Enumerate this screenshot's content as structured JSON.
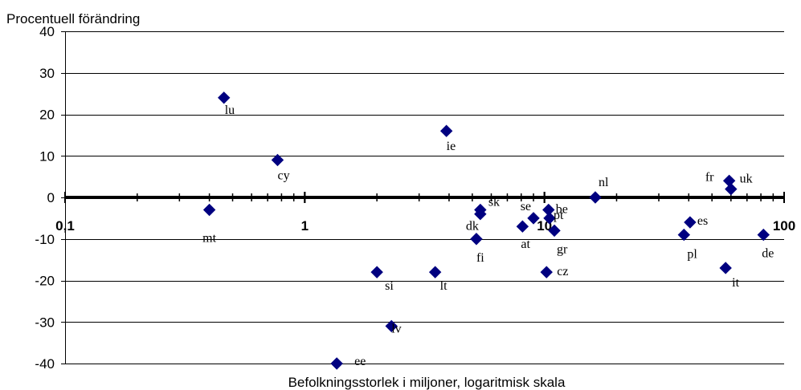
{
  "chart_data": {
    "type": "scatter",
    "title": "",
    "ylabel": "Procentuell förändring",
    "xlabel": "Befolkningsstorlek i miljoner, logaritmisk skala",
    "x_scale": "log",
    "xlim": [
      0.1,
      100
    ],
    "ylim": [
      -40,
      40
    ],
    "x_ticks": [
      0.1,
      1,
      10,
      100
    ],
    "x_tick_labels": [
      "0,1",
      "1",
      "10",
      "100"
    ],
    "y_ticks": [
      40,
      30,
      20,
      10,
      0,
      -10,
      -20,
      -30,
      -40
    ],
    "y_tick_labels": [
      "40",
      "30",
      "20",
      "10",
      "0",
      "-10",
      "-20",
      "-30",
      "-40"
    ],
    "grid": "horizontal",
    "marker_color": "#000080",
    "series": [
      {
        "points": [
          {
            "label": "mt",
            "x": 0.4,
            "y": -3
          },
          {
            "label": "lu",
            "x": 0.46,
            "y": 24
          },
          {
            "label": "cy",
            "x": 0.77,
            "y": 9
          },
          {
            "label": "ee",
            "x": 1.36,
            "y": -40
          },
          {
            "label": "lv",
            "x": 2.3,
            "y": -31
          },
          {
            "label": "si",
            "x": 2.0,
            "y": -18
          },
          {
            "label": "lt",
            "x": 3.5,
            "y": -18
          },
          {
            "label": "ie",
            "x": 3.9,
            "y": 16
          },
          {
            "label": "fi",
            "x": 5.2,
            "y": -10
          },
          {
            "label": "dk",
            "x": 5.4,
            "y": -4
          },
          {
            "label": "sk",
            "x": 5.4,
            "y": -3
          },
          {
            "label": "se",
            "x": 9.0,
            "y": -5
          },
          {
            "label": "at",
            "x": 8.1,
            "y": -7
          },
          {
            "label": "cz",
            "x": 10.2,
            "y": -18
          },
          {
            "label": "be",
            "x": 10.4,
            "y": -3
          },
          {
            "label": "pt",
            "x": 10.5,
            "y": -5
          },
          {
            "label": "gr",
            "x": 11.0,
            "y": -8
          },
          {
            "label": "nl",
            "x": 16.3,
            "y": 0
          },
          {
            "label": "pl",
            "x": 38.2,
            "y": -9
          },
          {
            "label": "es",
            "x": 40.5,
            "y": -6
          },
          {
            "label": "fr",
            "x": 60.0,
            "y": 2
          },
          {
            "label": "uk",
            "x": 59.0,
            "y": 4
          },
          {
            "label": "it",
            "x": 57.0,
            "y": -17
          },
          {
            "label": "de",
            "x": 82.0,
            "y": -9
          }
        ]
      }
    ]
  }
}
